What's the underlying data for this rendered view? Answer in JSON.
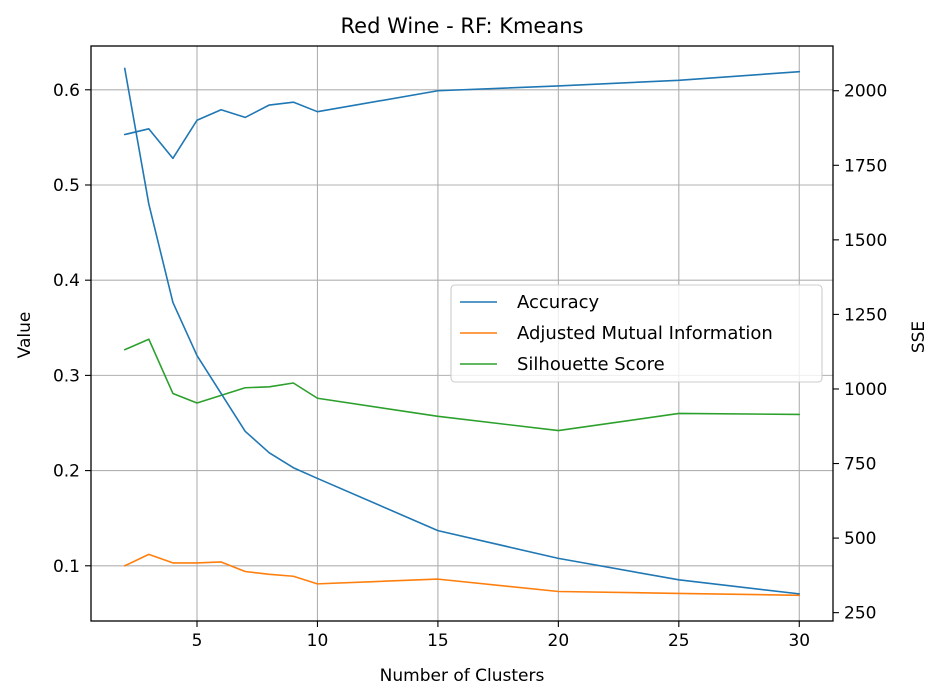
{
  "chart_data": {
    "type": "line",
    "title": "Red Wine - RF: Kmeans",
    "xlabel": "Number of Clusters",
    "ylabel": "Value",
    "y2label": "SSE",
    "xlim": [
      0.6,
      31.4
    ],
    "ylim": [
      0.042,
      0.646
    ],
    "y2lim": [
      222,
      2150
    ],
    "xticks": [
      5,
      10,
      15,
      20,
      25,
      30
    ],
    "yticks": [
      0.1,
      0.2,
      0.3,
      0.4,
      0.5,
      0.6
    ],
    "y2ticks": [
      250,
      500,
      750,
      1000,
      1250,
      1500,
      1750,
      2000
    ],
    "grid": true,
    "legend_position": "center-right",
    "x": [
      2,
      3,
      4,
      5,
      6,
      7,
      8,
      9,
      10,
      15,
      20,
      25,
      30
    ],
    "series": [
      {
        "name": "Accuracy",
        "axis": "left",
        "color": "#1f77b4",
        "values": [
          0.553,
          0.559,
          0.528,
          0.568,
          0.579,
          0.571,
          0.584,
          0.587,
          0.577,
          0.599,
          0.604,
          0.61,
          0.619
        ],
        "in_legend": true
      },
      {
        "name": "Adjusted Mutual Information",
        "axis": "left",
        "color": "#ff7f0e",
        "values": [
          0.1,
          0.112,
          0.103,
          0.103,
          0.104,
          0.094,
          0.091,
          0.089,
          0.081,
          0.086,
          0.073,
          0.071,
          0.069
        ],
        "in_legend": true
      },
      {
        "name": "Silhouette Score",
        "axis": "left",
        "color": "#2ca02c",
        "values": [
          0.327,
          0.338,
          0.281,
          0.271,
          0.279,
          0.287,
          0.288,
          0.292,
          0.276,
          0.257,
          0.242,
          0.26,
          0.259
        ],
        "in_legend": true
      },
      {
        "axis": "right",
        "color": "#1f77b4",
        "values": [
          2075,
          1620,
          1290,
          1112,
          985,
          858,
          786,
          736,
          700,
          525,
          432,
          360,
          313
        ],
        "in_legend": false
      }
    ]
  }
}
